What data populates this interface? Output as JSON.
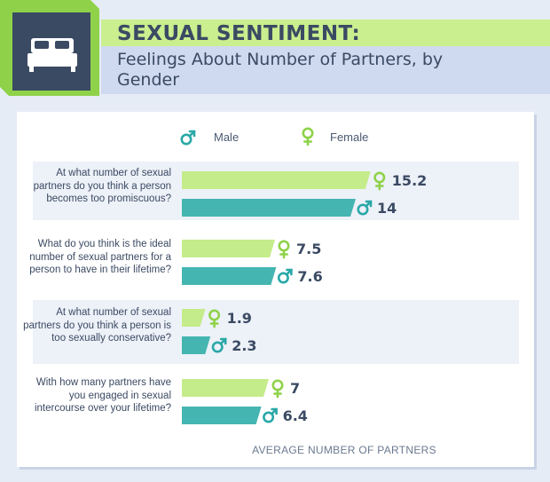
{
  "chart_data": {
    "type": "bar",
    "title": "SEXUAL SENTIMENT:",
    "subtitle": "Feelings About Number of Partners, by Gender",
    "xlabel": "AVERAGE NUMBER OF PARTNERS",
    "xlim": [
      0,
      16
    ],
    "legend_position": "top",
    "categories": [
      "At what number of sexual partners do you think a person becomes too promiscuous?",
      "What do you think is the ideal number of sexual partners for a person to have in their lifetime?",
      "At what number of sexual partners do you think a person is too sexually conservative?",
      "With how many partners have you engaged in sexual intercourse over your lifetime?"
    ],
    "series": [
      {
        "name": "Female",
        "symbol": "♀",
        "color": "#c4ec8a",
        "values": [
          15.2,
          7.5,
          1.9,
          7
        ],
        "labels": [
          "15.2",
          "7.5",
          "1.9",
          "7"
        ]
      },
      {
        "name": "Male",
        "symbol": "♂",
        "color": "#44b5b0",
        "values": [
          14,
          7.6,
          2.3,
          6.4
        ],
        "labels": [
          "14",
          "7.6",
          "2.3",
          "6.4"
        ]
      }
    ]
  },
  "header": {
    "title": "SEXUAL SENTIMENT:",
    "subtitle": "Feelings About Number of Partners, by Gender",
    "icon": "bed-icon"
  },
  "legend": [
    {
      "name": "Male",
      "symbol": "♂",
      "color": "#2aa8a8"
    },
    {
      "name": "Female",
      "symbol": "♀",
      "color": "#8fd24a"
    }
  ],
  "colors": {
    "female_bar": "#c4ec8a",
    "male_bar": "#44b5b0",
    "female_icon": "#8fd24a",
    "male_icon": "#2aa8a8",
    "text": "#3b4a63"
  }
}
